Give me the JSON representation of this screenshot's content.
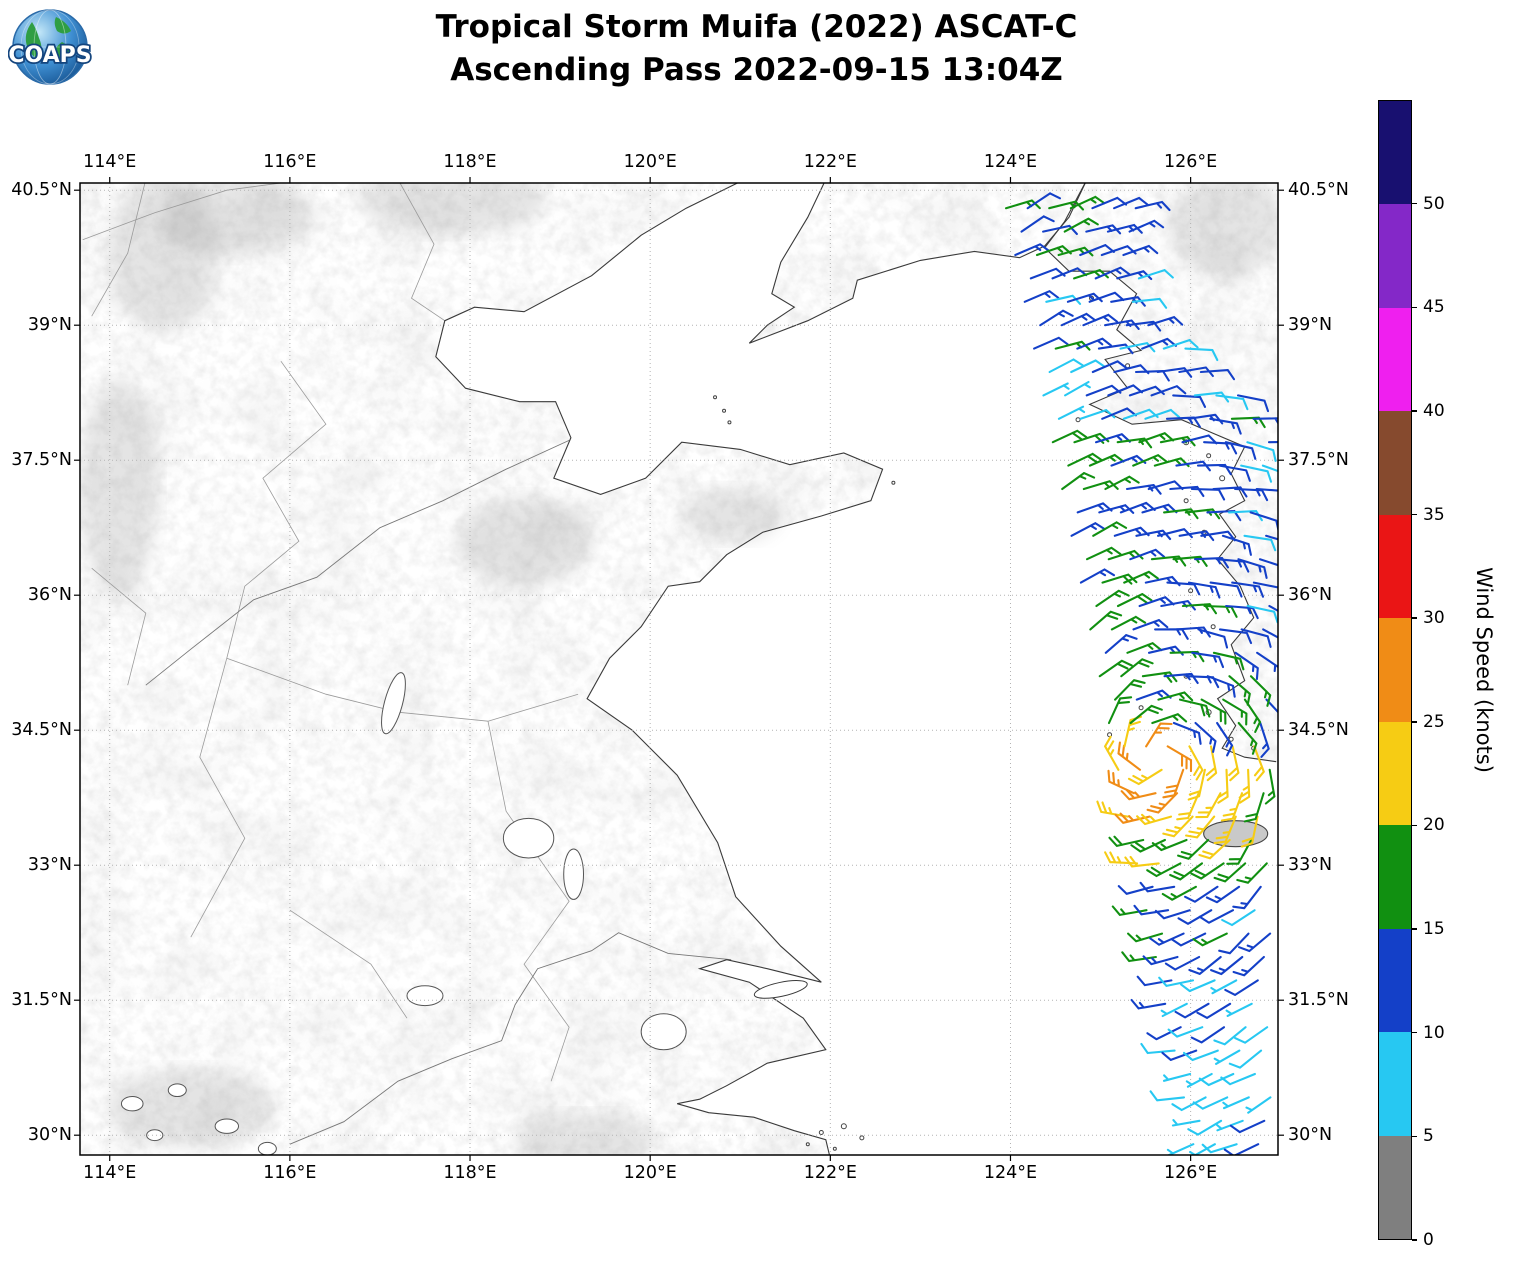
{
  "header": {
    "title_line1": "Tropical Storm Muifa (2022) ASCAT-C",
    "title_line2": "Ascending Pass 2022-09-15 13:04Z",
    "logo_text": "COAPS"
  },
  "map": {
    "extent": {
      "lon_min": 113.67,
      "lon_max": 126.97,
      "lat_min": 29.78,
      "lat_max": 40.58
    },
    "lon_ticks": [
      {
        "lon": 114,
        "label": "114°E"
      },
      {
        "lon": 116,
        "label": "116°E"
      },
      {
        "lon": 118,
        "label": "118°E"
      },
      {
        "lon": 120,
        "label": "120°E"
      },
      {
        "lon": 122,
        "label": "122°E"
      },
      {
        "lon": 124,
        "label": "124°E"
      },
      {
        "lon": 126,
        "label": "126°E"
      }
    ],
    "lat_ticks": [
      {
        "lat": 40.5,
        "label": "40.5°N"
      },
      {
        "lat": 39,
        "label": "39°N"
      },
      {
        "lat": 37.5,
        "label": "37.5°N"
      },
      {
        "lat": 36,
        "label": "36°N"
      },
      {
        "lat": 34.5,
        "label": "34.5°N"
      },
      {
        "lat": 33,
        "label": "33°N"
      },
      {
        "lat": 31.5,
        "label": "31.5°N"
      },
      {
        "lat": 30,
        "label": "30°N"
      }
    ]
  },
  "colorbar": {
    "label": "Wind Speed (knots)",
    "tick_values": [
      0,
      5,
      10,
      15,
      20,
      25,
      30,
      35,
      40,
      45,
      50
    ],
    "segments": [
      {
        "min": 0,
        "max": 5,
        "color": "#7f7f7f"
      },
      {
        "min": 5,
        "max": 10,
        "color": "#27c8f2"
      },
      {
        "min": 10,
        "max": 15,
        "color": "#1440c8"
      },
      {
        "min": 15,
        "max": 20,
        "color": "#119011"
      },
      {
        "min": 20,
        "max": 25,
        "color": "#f6cc14"
      },
      {
        "min": 25,
        "max": 30,
        "color": "#f08c16"
      },
      {
        "min": 30,
        "max": 35,
        "color": "#ea1515"
      },
      {
        "min": 35,
        "max": 40,
        "color": "#864a2e"
      },
      {
        "min": 40,
        "max": 45,
        "color": "#ef1fef"
      },
      {
        "min": 45,
        "max": 50,
        "color": "#8428c8"
      },
      {
        "min": 50,
        "max": 55,
        "color": "#181070"
      }
    ]
  },
  "wind_field": {
    "units": "knots",
    "direction_center": {
      "lon": 125.6,
      "lat": 34.2,
      "rotation_offset_deg": 80
    },
    "swath": {
      "top_lat": 40.3,
      "bottom_lat": 29.9,
      "west_top_lon": 123.95,
      "west_slope_deg_per_deg": 0.2,
      "east_top_lon": 125.45,
      "east_knee_lat": 39.2,
      "east_slope_deg_per_deg": 1.1,
      "east_max_lon": 126.9
    },
    "grid_spacing_deg": {
      "lat": 0.26,
      "lon": 0.24
    },
    "speed_bands_knots": [
      {
        "lat_min": 39.4,
        "lat_max": 40.35,
        "west": 14,
        "east": 12
      },
      {
        "lat_min": 38.6,
        "lat_max": 39.4,
        "west": 13,
        "east": 11
      },
      {
        "lat_min": 37.8,
        "lat_max": 38.6,
        "west": 8,
        "east": 13
      },
      {
        "lat_min": 36.6,
        "lat_max": 37.8,
        "west": 17,
        "east": 10
      },
      {
        "lat_min": 35.2,
        "lat_max": 36.6,
        "west": 17,
        "east": 11
      },
      {
        "lat_min": 34.4,
        "lat_max": 35.2,
        "west": 18,
        "east": 15
      },
      {
        "lat_min": 33.4,
        "lat_max": 34.4,
        "west": 20,
        "east": 20,
        "bump_lon": 125.7,
        "bump_amp": 6,
        "bump_width": 0.45
      },
      {
        "lat_min": 32.8,
        "lat_max": 33.4,
        "west": 21,
        "east": 16
      },
      {
        "lat_min": 31.9,
        "lat_max": 32.8,
        "west": 15,
        "east": 11
      },
      {
        "lat_min": 30.9,
        "lat_max": 31.9,
        "west": 10,
        "east": 9
      },
      {
        "lat_min": 29.8,
        "lat_max": 30.9,
        "west": 7,
        "east": 8
      }
    ]
  }
}
